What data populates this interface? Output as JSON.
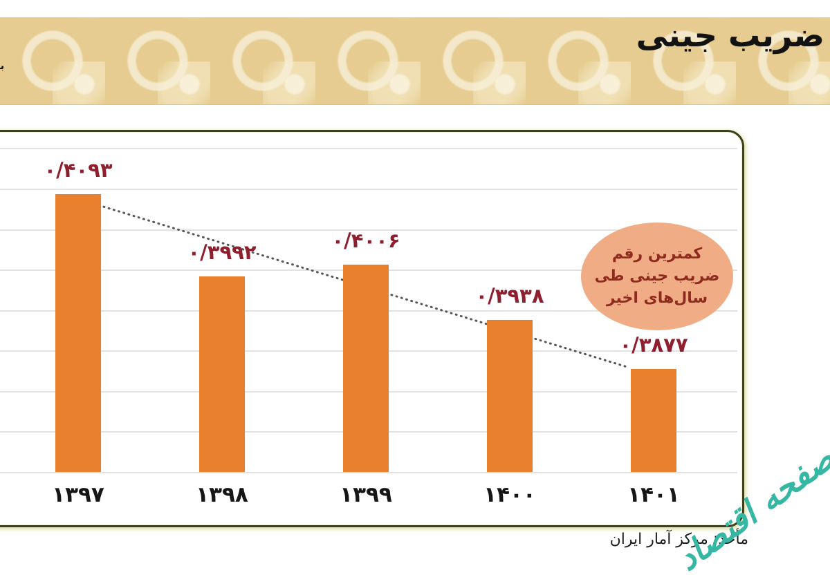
{
  "header": {
    "title": "ضریب جینی",
    "partial_left_text": "با"
  },
  "chart_data": {
    "type": "bar",
    "title": "ضریب جینی",
    "categories": [
      "۱۳۹۷",
      "۱۳۹۸",
      "۱۳۹۹",
      "۱۴۰۰",
      "۱۴۰۱"
    ],
    "values": [
      0.4093,
      0.3992,
      0.4006,
      0.3938,
      0.3877
    ],
    "value_labels": [
      "۰/۴۰۹۳",
      "۰/۳۹۹۲",
      "۰/۴۰۰۶",
      "۰/۳۹۳۸",
      "۰/۳۸۷۷"
    ],
    "ylim": [
      0.375,
      0.417
    ],
    "gridline_step": 0.005,
    "grid": true,
    "legend": false,
    "bar_color": "#e8802d",
    "value_label_color": "#8e1f2e",
    "axis_label_color": "#161616",
    "trendline": {
      "style": "dotted",
      "color": "#555555"
    },
    "annotation": {
      "lines": [
        "کمترین رقم",
        "ضریب جینی طی",
        "سال‌های اخیر"
      ],
      "fill": "#f0ad85",
      "text_color": "#8e2a1e"
    }
  },
  "footer": {
    "source": "مأخذ: مرکز آمار ایران",
    "watermark": "صفحه اقتصاد",
    "watermark_color": "#35b7a3"
  }
}
